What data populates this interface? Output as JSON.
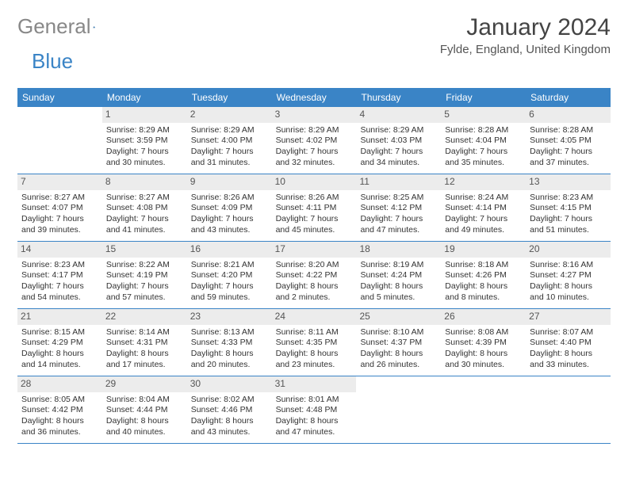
{
  "brand": {
    "part1": "General",
    "part2": "Blue"
  },
  "title": "January 2024",
  "location": "Fylde, England, United Kingdom",
  "colors": {
    "header_bg": "#3a84c6",
    "header_text": "#ffffff",
    "daynum_bg": "#ececec",
    "border": "#3a84c6"
  },
  "day_names": [
    "Sunday",
    "Monday",
    "Tuesday",
    "Wednesday",
    "Thursday",
    "Friday",
    "Saturday"
  ],
  "weeks": [
    [
      {
        "empty": true
      },
      {
        "num": "1",
        "sunrise": "Sunrise: 8:29 AM",
        "sunset": "Sunset: 3:59 PM",
        "day1": "Daylight: 7 hours",
        "day2": "and 30 minutes."
      },
      {
        "num": "2",
        "sunrise": "Sunrise: 8:29 AM",
        "sunset": "Sunset: 4:00 PM",
        "day1": "Daylight: 7 hours",
        "day2": "and 31 minutes."
      },
      {
        "num": "3",
        "sunrise": "Sunrise: 8:29 AM",
        "sunset": "Sunset: 4:02 PM",
        "day1": "Daylight: 7 hours",
        "day2": "and 32 minutes."
      },
      {
        "num": "4",
        "sunrise": "Sunrise: 8:29 AM",
        "sunset": "Sunset: 4:03 PM",
        "day1": "Daylight: 7 hours",
        "day2": "and 34 minutes."
      },
      {
        "num": "5",
        "sunrise": "Sunrise: 8:28 AM",
        "sunset": "Sunset: 4:04 PM",
        "day1": "Daylight: 7 hours",
        "day2": "and 35 minutes."
      },
      {
        "num": "6",
        "sunrise": "Sunrise: 8:28 AM",
        "sunset": "Sunset: 4:05 PM",
        "day1": "Daylight: 7 hours",
        "day2": "and 37 minutes."
      }
    ],
    [
      {
        "num": "7",
        "sunrise": "Sunrise: 8:27 AM",
        "sunset": "Sunset: 4:07 PM",
        "day1": "Daylight: 7 hours",
        "day2": "and 39 minutes."
      },
      {
        "num": "8",
        "sunrise": "Sunrise: 8:27 AM",
        "sunset": "Sunset: 4:08 PM",
        "day1": "Daylight: 7 hours",
        "day2": "and 41 minutes."
      },
      {
        "num": "9",
        "sunrise": "Sunrise: 8:26 AM",
        "sunset": "Sunset: 4:09 PM",
        "day1": "Daylight: 7 hours",
        "day2": "and 43 minutes."
      },
      {
        "num": "10",
        "sunrise": "Sunrise: 8:26 AM",
        "sunset": "Sunset: 4:11 PM",
        "day1": "Daylight: 7 hours",
        "day2": "and 45 minutes."
      },
      {
        "num": "11",
        "sunrise": "Sunrise: 8:25 AM",
        "sunset": "Sunset: 4:12 PM",
        "day1": "Daylight: 7 hours",
        "day2": "and 47 minutes."
      },
      {
        "num": "12",
        "sunrise": "Sunrise: 8:24 AM",
        "sunset": "Sunset: 4:14 PM",
        "day1": "Daylight: 7 hours",
        "day2": "and 49 minutes."
      },
      {
        "num": "13",
        "sunrise": "Sunrise: 8:23 AM",
        "sunset": "Sunset: 4:15 PM",
        "day1": "Daylight: 7 hours",
        "day2": "and 51 minutes."
      }
    ],
    [
      {
        "num": "14",
        "sunrise": "Sunrise: 8:23 AM",
        "sunset": "Sunset: 4:17 PM",
        "day1": "Daylight: 7 hours",
        "day2": "and 54 minutes."
      },
      {
        "num": "15",
        "sunrise": "Sunrise: 8:22 AM",
        "sunset": "Sunset: 4:19 PM",
        "day1": "Daylight: 7 hours",
        "day2": "and 57 minutes."
      },
      {
        "num": "16",
        "sunrise": "Sunrise: 8:21 AM",
        "sunset": "Sunset: 4:20 PM",
        "day1": "Daylight: 7 hours",
        "day2": "and 59 minutes."
      },
      {
        "num": "17",
        "sunrise": "Sunrise: 8:20 AM",
        "sunset": "Sunset: 4:22 PM",
        "day1": "Daylight: 8 hours",
        "day2": "and 2 minutes."
      },
      {
        "num": "18",
        "sunrise": "Sunrise: 8:19 AM",
        "sunset": "Sunset: 4:24 PM",
        "day1": "Daylight: 8 hours",
        "day2": "and 5 minutes."
      },
      {
        "num": "19",
        "sunrise": "Sunrise: 8:18 AM",
        "sunset": "Sunset: 4:26 PM",
        "day1": "Daylight: 8 hours",
        "day2": "and 8 minutes."
      },
      {
        "num": "20",
        "sunrise": "Sunrise: 8:16 AM",
        "sunset": "Sunset: 4:27 PM",
        "day1": "Daylight: 8 hours",
        "day2": "and 10 minutes."
      }
    ],
    [
      {
        "num": "21",
        "sunrise": "Sunrise: 8:15 AM",
        "sunset": "Sunset: 4:29 PM",
        "day1": "Daylight: 8 hours",
        "day2": "and 14 minutes."
      },
      {
        "num": "22",
        "sunrise": "Sunrise: 8:14 AM",
        "sunset": "Sunset: 4:31 PM",
        "day1": "Daylight: 8 hours",
        "day2": "and 17 minutes."
      },
      {
        "num": "23",
        "sunrise": "Sunrise: 8:13 AM",
        "sunset": "Sunset: 4:33 PM",
        "day1": "Daylight: 8 hours",
        "day2": "and 20 minutes."
      },
      {
        "num": "24",
        "sunrise": "Sunrise: 8:11 AM",
        "sunset": "Sunset: 4:35 PM",
        "day1": "Daylight: 8 hours",
        "day2": "and 23 minutes."
      },
      {
        "num": "25",
        "sunrise": "Sunrise: 8:10 AM",
        "sunset": "Sunset: 4:37 PM",
        "day1": "Daylight: 8 hours",
        "day2": "and 26 minutes."
      },
      {
        "num": "26",
        "sunrise": "Sunrise: 8:08 AM",
        "sunset": "Sunset: 4:39 PM",
        "day1": "Daylight: 8 hours",
        "day2": "and 30 minutes."
      },
      {
        "num": "27",
        "sunrise": "Sunrise: 8:07 AM",
        "sunset": "Sunset: 4:40 PM",
        "day1": "Daylight: 8 hours",
        "day2": "and 33 minutes."
      }
    ],
    [
      {
        "num": "28",
        "sunrise": "Sunrise: 8:05 AM",
        "sunset": "Sunset: 4:42 PM",
        "day1": "Daylight: 8 hours",
        "day2": "and 36 minutes."
      },
      {
        "num": "29",
        "sunrise": "Sunrise: 8:04 AM",
        "sunset": "Sunset: 4:44 PM",
        "day1": "Daylight: 8 hours",
        "day2": "and 40 minutes."
      },
      {
        "num": "30",
        "sunrise": "Sunrise: 8:02 AM",
        "sunset": "Sunset: 4:46 PM",
        "day1": "Daylight: 8 hours",
        "day2": "and 43 minutes."
      },
      {
        "num": "31",
        "sunrise": "Sunrise: 8:01 AM",
        "sunset": "Sunset: 4:48 PM",
        "day1": "Daylight: 8 hours",
        "day2": "and 47 minutes."
      },
      {
        "empty": true
      },
      {
        "empty": true
      },
      {
        "empty": true
      }
    ]
  ]
}
